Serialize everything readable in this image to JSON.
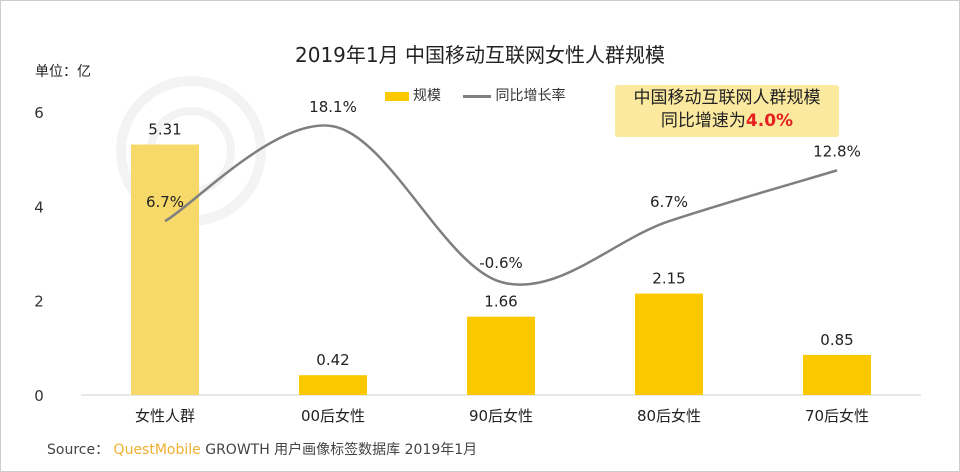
{
  "title": "2019年1月 中国移动互联网女性人群规模",
  "unit": "单位：亿",
  "watermark": "QUESTMOBILE",
  "callout": {
    "line1": "中国移动互联网人群规模",
    "line2_prefix": "同比增速为",
    "highlight": "4.0%"
  },
  "source": {
    "label": "Source：",
    "brand": "QuestMobile",
    "text": "GROWTH 用户画像标签数据库 2019年1月"
  },
  "colors": {
    "bar": "#fcc800",
    "bar_highlight": "#f7d96a",
    "line": "#7f7f7f",
    "callout_bg": "#fbe9a0",
    "highlight_text": "#e62020"
  },
  "chart_data": {
    "type": "bar+line",
    "categories": [
      "女性人群",
      "00后女性",
      "90后女性",
      "80后女性",
      "70后女性"
    ],
    "series": [
      {
        "name": "规模",
        "type": "bar",
        "axis": "left",
        "values": [
          5.31,
          0.42,
          1.66,
          2.15,
          0.85
        ],
        "labels": [
          "5.31",
          "0.42",
          "1.66",
          "2.15",
          "0.85"
        ]
      },
      {
        "name": "同比增长率",
        "type": "line",
        "axis": "right-hidden",
        "values": [
          6.7,
          18.1,
          -0.6,
          6.7,
          12.8
        ],
        "labels": [
          "6.7%",
          "18.1%",
          "-0.6%",
          "6.7%",
          "12.8%"
        ],
        "smooth": true
      }
    ],
    "yticks": [
      0,
      2,
      4,
      6
    ],
    "ylim": [
      0,
      6
    ],
    "grid": false,
    "legend": "top-center"
  }
}
